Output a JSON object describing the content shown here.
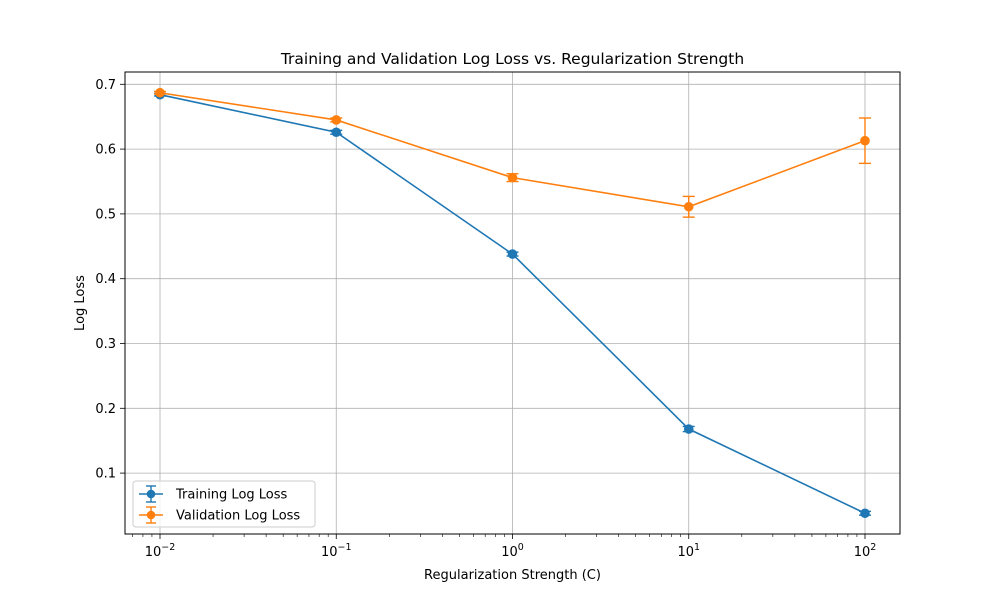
{
  "chart_data": {
    "type": "line",
    "title": "Training and Validation Log Loss vs. Regularization Strength",
    "xlabel": "Regularization Strength (C)",
    "ylabel": "Log Loss",
    "x_scale": "log",
    "x": [
      0.01,
      0.1,
      1,
      10,
      100
    ],
    "xlim": [
      0.00633,
      158
    ],
    "ylim": [
      0.006,
      0.719
    ],
    "x_ticks": [
      {
        "value": 0.01,
        "base": "10",
        "exp": "−2"
      },
      {
        "value": 0.1,
        "base": "10",
        "exp": "−1"
      },
      {
        "value": 1,
        "base": "10",
        "exp": "0"
      },
      {
        "value": 10,
        "base": "10",
        "exp": "1"
      },
      {
        "value": 100,
        "base": "10",
        "exp": "2"
      }
    ],
    "y_ticks": [
      {
        "value": 0.1,
        "label": "0.1"
      },
      {
        "value": 0.2,
        "label": "0.2"
      },
      {
        "value": 0.3,
        "label": "0.3"
      },
      {
        "value": 0.4,
        "label": "0.4"
      },
      {
        "value": 0.5,
        "label": "0.5"
      },
      {
        "value": 0.6,
        "label": "0.6"
      },
      {
        "value": 0.7,
        "label": "0.7"
      }
    ],
    "grid": true,
    "legend_position": "lower-left",
    "series": [
      {
        "name": "Training Log Loss",
        "color": "#1f77b4",
        "values": [
          0.684,
          0.626,
          0.438,
          0.168,
          0.038
        ],
        "errors": [
          0.002,
          0.003,
          0.003,
          0.004,
          0.003
        ]
      },
      {
        "name": "Validation Log Loss",
        "color": "#ff7f0e",
        "values": [
          0.687,
          0.645,
          0.556,
          0.511,
          0.613
        ],
        "errors": [
          0.002,
          0.003,
          0.006,
          0.016,
          0.035
        ]
      }
    ]
  }
}
